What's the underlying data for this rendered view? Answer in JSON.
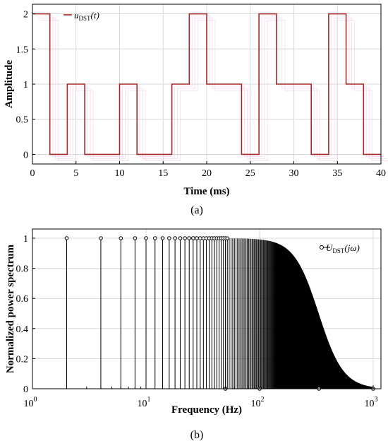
{
  "chart_data": [
    {
      "type": "line",
      "panel_label": "(a)",
      "xlabel": "Time (ms)",
      "ylabel": "Amplitude",
      "xlim": [
        0,
        40
      ],
      "ylim": [
        0,
        2
      ],
      "xticks": [
        0,
        5,
        10,
        15,
        20,
        25,
        30,
        35,
        40
      ],
      "xtick_labels": [
        "0",
        "5",
        "10",
        "15",
        "20",
        "25",
        "30",
        "35",
        "40"
      ],
      "yticks": [
        0,
        0.5,
        1,
        1.5,
        2
      ],
      "ytick_labels": [
        "0",
        "0.5",
        "1",
        "1.5",
        "2"
      ],
      "grid": true,
      "legend_position": "top-left",
      "series": [
        {
          "name": "u_DST(t)",
          "name_main": "u",
          "name_sub": "DST",
          "name_arg": "(t)",
          "color": "#a52a2a",
          "shadow_color": "#f3c6e6",
          "step": true,
          "x": [
            0,
            2,
            4,
            6,
            10,
            12,
            16,
            18,
            20,
            24,
            26,
            28,
            32,
            34,
            36,
            38,
            40
          ],
          "y": [
            2,
            0,
            1,
            0,
            1,
            0,
            1,
            2,
            1,
            0,
            2,
            1,
            0,
            2,
            1,
            0,
            2
          ]
        }
      ]
    },
    {
      "type": "stem",
      "panel_label": "(b)",
      "xlabel": "Frequency (Hz)",
      "ylabel": "Normalized power spectrum",
      "xscale": "log",
      "xlim": [
        1,
        1000
      ],
      "ylim": [
        0,
        1
      ],
      "xticks": [
        1,
        10,
        100,
        1000
      ],
      "xtick_base": [
        "10",
        "10",
        "10",
        "10"
      ],
      "xtick_exp": [
        "0",
        "1",
        "2",
        "3"
      ],
      "yticks": [
        0,
        0.2,
        0.4,
        0.6,
        0.8,
        1
      ],
      "ytick_labels": [
        "0",
        "0.2",
        "0.4",
        "0.6",
        "0.8",
        "1"
      ],
      "grid": true,
      "legend_position": "top-right",
      "series": [
        {
          "name": "U_DST(jω)",
          "name_main": "U",
          "name_sub": "DST",
          "name_arg": "(jω)",
          "color": "#000000",
          "fundamental_hz": 2,
          "lowpass_cutoff_hz": 330,
          "lowpass_order": 2,
          "zero_markers_hz": [
            50,
            100,
            333,
            1000
          ]
        }
      ]
    }
  ]
}
